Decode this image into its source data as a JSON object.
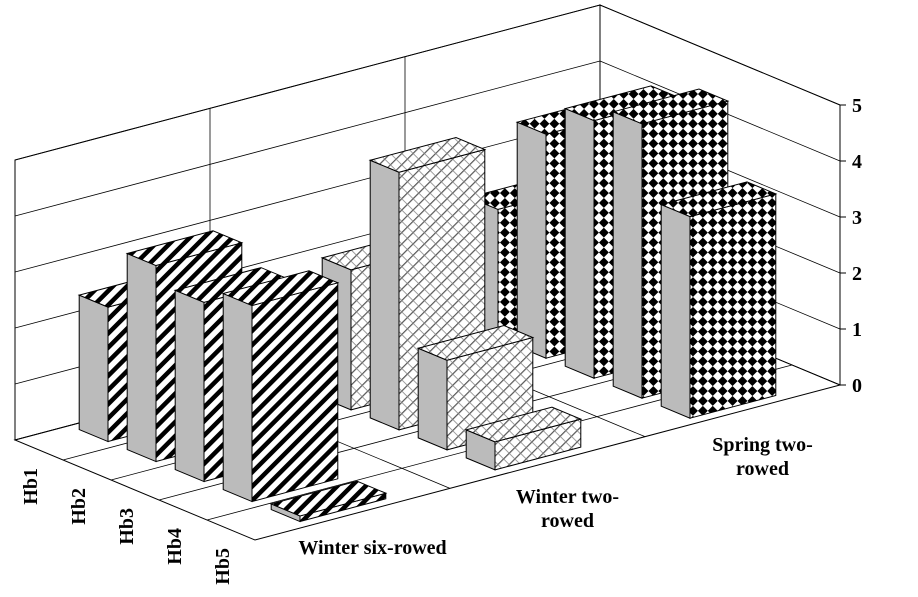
{
  "chart_data": {
    "type": "bar3d",
    "categories": [
      "Winter six-rowed",
      "Winter two-rowed",
      "Spring two-rowed"
    ],
    "category_patterns": [
      "diagonal",
      "hatch",
      "checker"
    ],
    "series": [
      {
        "name": "Hb1",
        "values": [
          2.4,
          1.3,
          2.3
        ]
      },
      {
        "name": "Hb2",
        "values": [
          3.5,
          2.5,
          4.0
        ]
      },
      {
        "name": "Hb3",
        "values": [
          3.2,
          4.6,
          4.6
        ]
      },
      {
        "name": "Hb4",
        "values": [
          3.5,
          1.6,
          4.9
        ]
      },
      {
        "name": "Hb5",
        "values": [
          0.1,
          0.5,
          3.6
        ]
      }
    ],
    "ylim": [
      0,
      5
    ],
    "yticks": [
      0,
      1,
      2,
      3,
      4,
      5
    ],
    "grid": true
  }
}
